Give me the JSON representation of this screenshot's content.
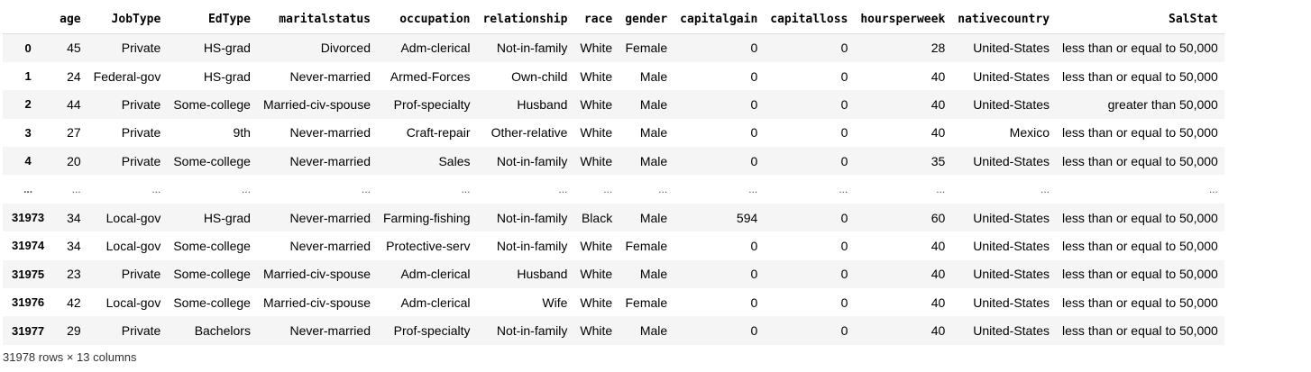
{
  "table": {
    "columns": [
      "",
      "age",
      "JobType",
      "EdType",
      "maritalstatus",
      "occupation",
      "relationship",
      "race",
      "gender",
      "capitalgain",
      "capitalloss",
      "hoursperweek",
      "nativecountry",
      "SalStat"
    ],
    "rows": [
      {
        "index": "0",
        "cells": [
          "45",
          "Private",
          "HS-grad",
          "Divorced",
          "Adm-clerical",
          "Not-in-family",
          "White",
          "Female",
          "0",
          "0",
          "28",
          "United-States",
          "less than or equal to 50,000"
        ]
      },
      {
        "index": "1",
        "cells": [
          "24",
          "Federal-gov",
          "HS-grad",
          "Never-married",
          "Armed-Forces",
          "Own-child",
          "White",
          "Male",
          "0",
          "0",
          "40",
          "United-States",
          "less than or equal to 50,000"
        ]
      },
      {
        "index": "2",
        "cells": [
          "44",
          "Private",
          "Some-college",
          "Married-civ-spouse",
          "Prof-specialty",
          "Husband",
          "White",
          "Male",
          "0",
          "0",
          "40",
          "United-States",
          "greater than 50,000"
        ]
      },
      {
        "index": "3",
        "cells": [
          "27",
          "Private",
          "9th",
          "Never-married",
          "Craft-repair",
          "Other-relative",
          "White",
          "Male",
          "0",
          "0",
          "40",
          "Mexico",
          "less than or equal to 50,000"
        ]
      },
      {
        "index": "4",
        "cells": [
          "20",
          "Private",
          "Some-college",
          "Never-married",
          "Sales",
          "Not-in-family",
          "White",
          "Male",
          "0",
          "0",
          "35",
          "United-States",
          "less than or equal to 50,000"
        ]
      },
      {
        "index": "...",
        "ellipsis": true,
        "cells": [
          "...",
          "...",
          "...",
          "...",
          "...",
          "...",
          "...",
          "...",
          "...",
          "...",
          "...",
          "...",
          "..."
        ]
      },
      {
        "index": "31973",
        "cells": [
          "34",
          "Local-gov",
          "HS-grad",
          "Never-married",
          "Farming-fishing",
          "Not-in-family",
          "Black",
          "Male",
          "594",
          "0",
          "60",
          "United-States",
          "less than or equal to 50,000"
        ]
      },
      {
        "index": "31974",
        "cells": [
          "34",
          "Local-gov",
          "Some-college",
          "Never-married",
          "Protective-serv",
          "Not-in-family",
          "White",
          "Female",
          "0",
          "0",
          "40",
          "United-States",
          "less than or equal to 50,000"
        ]
      },
      {
        "index": "31975",
        "cells": [
          "23",
          "Private",
          "Some-college",
          "Married-civ-spouse",
          "Adm-clerical",
          "Husband",
          "White",
          "Male",
          "0",
          "0",
          "40",
          "United-States",
          "less than or equal to 50,000"
        ]
      },
      {
        "index": "31976",
        "cells": [
          "42",
          "Local-gov",
          "Some-college",
          "Married-civ-spouse",
          "Adm-clerical",
          "Wife",
          "White",
          "Female",
          "0",
          "0",
          "40",
          "United-States",
          "less than or equal to 50,000"
        ]
      },
      {
        "index": "31977",
        "cells": [
          "29",
          "Private",
          "Bachelors",
          "Never-married",
          "Prof-specialty",
          "Not-in-family",
          "White",
          "Male",
          "0",
          "0",
          "40",
          "United-States",
          "less than or equal to 50,000"
        ]
      }
    ]
  },
  "footer": {
    "shape_text": "31978 rows × 13 columns"
  }
}
